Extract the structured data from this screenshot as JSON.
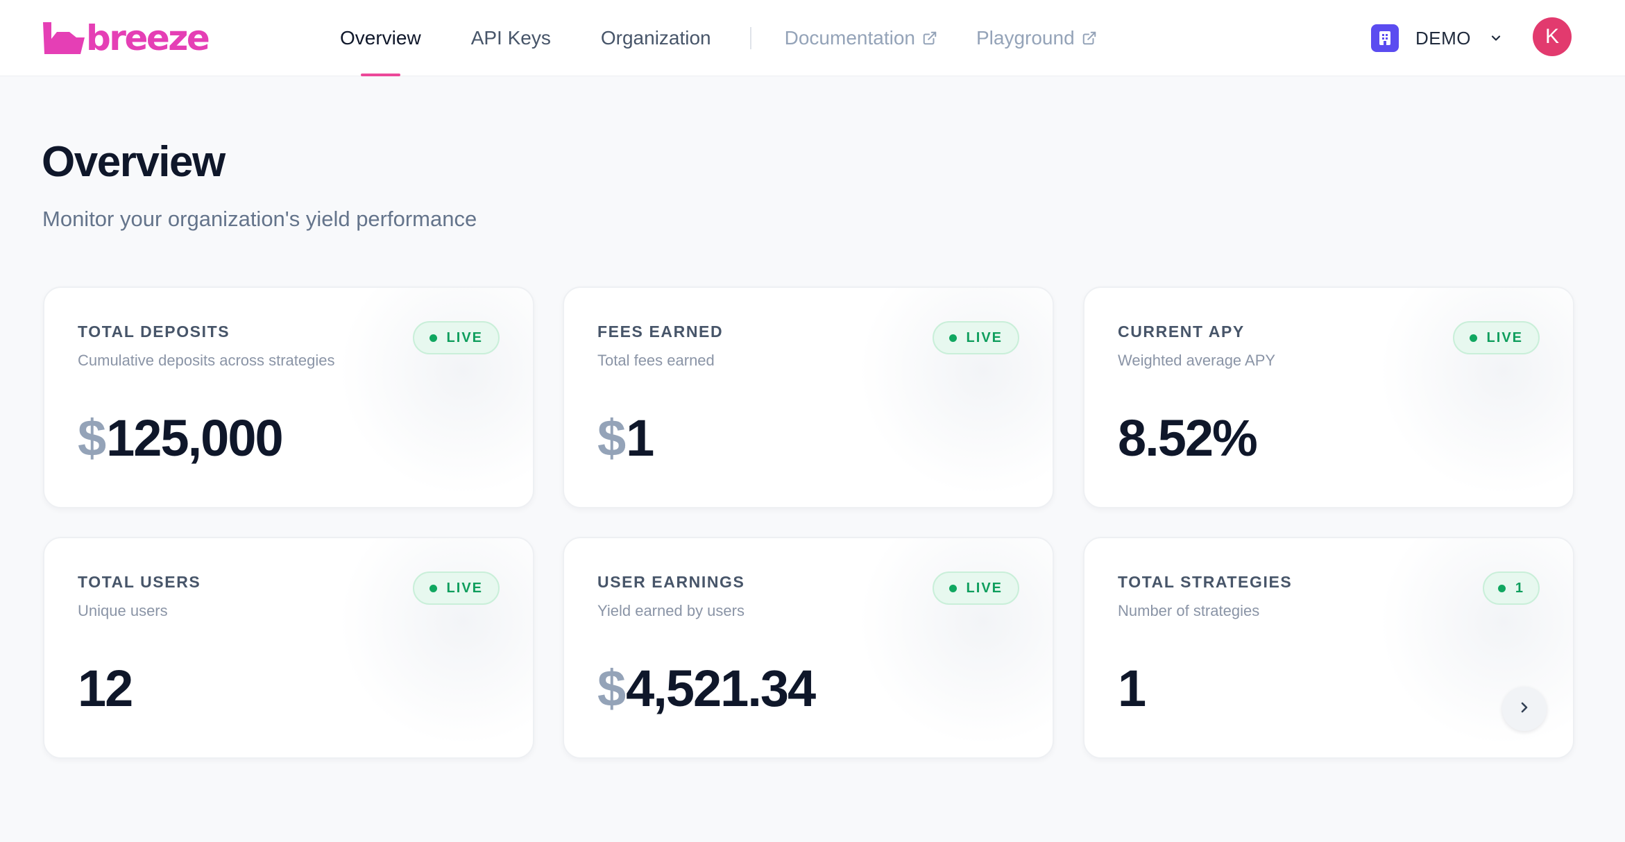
{
  "brand": {
    "name": "breeze",
    "color": "#e53fb5"
  },
  "nav": {
    "items": [
      {
        "label": "Overview",
        "active": true
      },
      {
        "label": "API Keys",
        "active": false
      },
      {
        "label": "Organization",
        "active": false
      }
    ],
    "external": [
      {
        "label": "Documentation",
        "icon": "external-link-icon"
      },
      {
        "label": "Playground",
        "icon": "external-link-icon"
      }
    ]
  },
  "org": {
    "name": "DEMO",
    "icon": "building-icon",
    "icon_color": "#5b4cf0"
  },
  "user": {
    "initial": "K",
    "avatar_color": "#e23a6e"
  },
  "page": {
    "title": "Overview",
    "subtitle": "Monitor your organization's yield performance"
  },
  "cards": [
    {
      "title": "TOTAL DEPOSITS",
      "description": "Cumulative deposits across strategies",
      "badge": "LIVE",
      "currency": "$",
      "value": "125,000"
    },
    {
      "title": "FEES EARNED",
      "description": "Total fees earned",
      "badge": "LIVE",
      "currency": "$",
      "value": "1"
    },
    {
      "title": "CURRENT APY",
      "description": "Weighted average APY",
      "badge": "LIVE",
      "currency": "",
      "value": "8.52%"
    },
    {
      "title": "TOTAL USERS",
      "description": "Unique users",
      "badge": "LIVE",
      "currency": "",
      "value": "12"
    },
    {
      "title": "USER EARNINGS",
      "description": "Yield earned by users",
      "badge": "LIVE",
      "currency": "$",
      "value": "4,521.34"
    },
    {
      "title": "TOTAL STRATEGIES",
      "description": "Number of strategies",
      "badge": "1",
      "currency": "",
      "value": "1",
      "action_icon": "chevron-right-icon"
    }
  ],
  "colors": {
    "accent": "#ec4899",
    "live_green": "#10a760",
    "live_bg": "#e7f8ef"
  }
}
